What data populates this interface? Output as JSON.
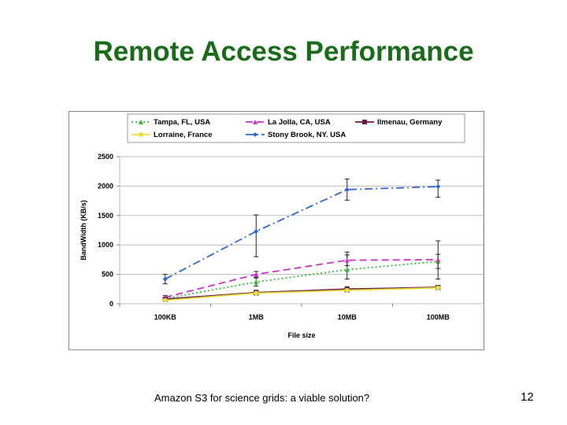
{
  "slide": {
    "title": "Remote Access Performance",
    "title_color": "#1a6b1a",
    "footer": "Amazon S3 for science grids: a viable solution?",
    "page_number": "12"
  },
  "chart_data": {
    "type": "line",
    "title": "",
    "xlabel": "File size",
    "ylabel": "BandWidth (KB/s)",
    "categories": [
      "100KB",
      "1MB",
      "10MB",
      "100MB"
    ],
    "ylim": [
      0,
      2500
    ],
    "yticks": [
      "0",
      "500",
      "1000",
      "1500",
      "2000",
      "2500"
    ],
    "grid": true,
    "legend_position": "top",
    "series": [
      {
        "name": "Tampa, FL, USA",
        "color": "#33bb33",
        "dash": "2,3",
        "marker": "triangle",
        "values": [
          90,
          370,
          580,
          720
        ],
        "error": [
          [
            70,
            110
          ],
          [
            300,
            440
          ],
          [
            420,
            880
          ],
          [
            600,
            840
          ]
        ]
      },
      {
        "name": "La Jolla, CA, USA",
        "color": "#cc33cc",
        "dash": "9,5",
        "marker": "triangle",
        "values": [
          110,
          500,
          740,
          750
        ],
        "error": [
          [
            80,
            140
          ],
          [
            450,
            550
          ],
          [
            650,
            830
          ],
          [
            420,
            1070
          ]
        ]
      },
      {
        "name": "Ilmenau, Germany",
        "color": "#6b1a4a",
        "dash": "",
        "marker": "square",
        "values": [
          80,
          190,
          250,
          280
        ],
        "error": [
          [
            60,
            100
          ],
          [
            150,
            230
          ],
          [
            210,
            290
          ],
          [
            250,
            310
          ]
        ]
      },
      {
        "name": "Lorraine, France",
        "color": "#e8e040",
        "dash": "",
        "marker": "circle",
        "values": [
          60,
          180,
          230,
          270
        ],
        "error": [
          [
            40,
            80
          ],
          [
            150,
            210
          ],
          [
            200,
            260
          ],
          [
            240,
            300
          ]
        ]
      },
      {
        "name": "Stony Brook, NY. USA",
        "color": "#3366cc",
        "dash": "10,4,2,4",
        "marker": "diamond",
        "values": [
          420,
          1230,
          1940,
          1990
        ],
        "error": [
          [
            340,
            500
          ],
          [
            800,
            1510
          ],
          [
            1760,
            2120
          ],
          [
            1810,
            2100
          ]
        ]
      }
    ]
  }
}
